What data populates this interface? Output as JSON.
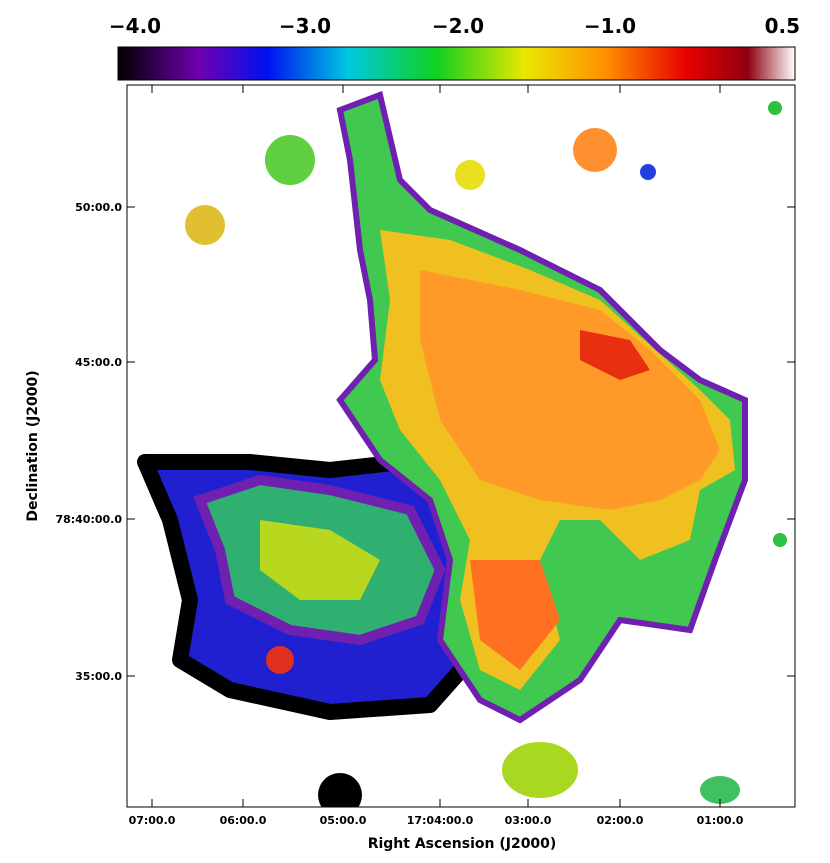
{
  "colorbar": {
    "labels": [
      "−4.0",
      "−3.0",
      "−2.0",
      "−1.0",
      "0.5"
    ]
  },
  "x_axis": {
    "title": "Right Ascension (J2000)",
    "labels": [
      "07:00.0",
      "06:00.0",
      "05:00.0",
      "17:04:00.0",
      "03:00.0",
      "02:00.0",
      "01:00.0"
    ]
  },
  "y_axis": {
    "title": "Declination (J2000)",
    "labels": [
      "50:00.0",
      "45:00.0",
      "78:40:00.0",
      "35:00.0"
    ]
  }
}
